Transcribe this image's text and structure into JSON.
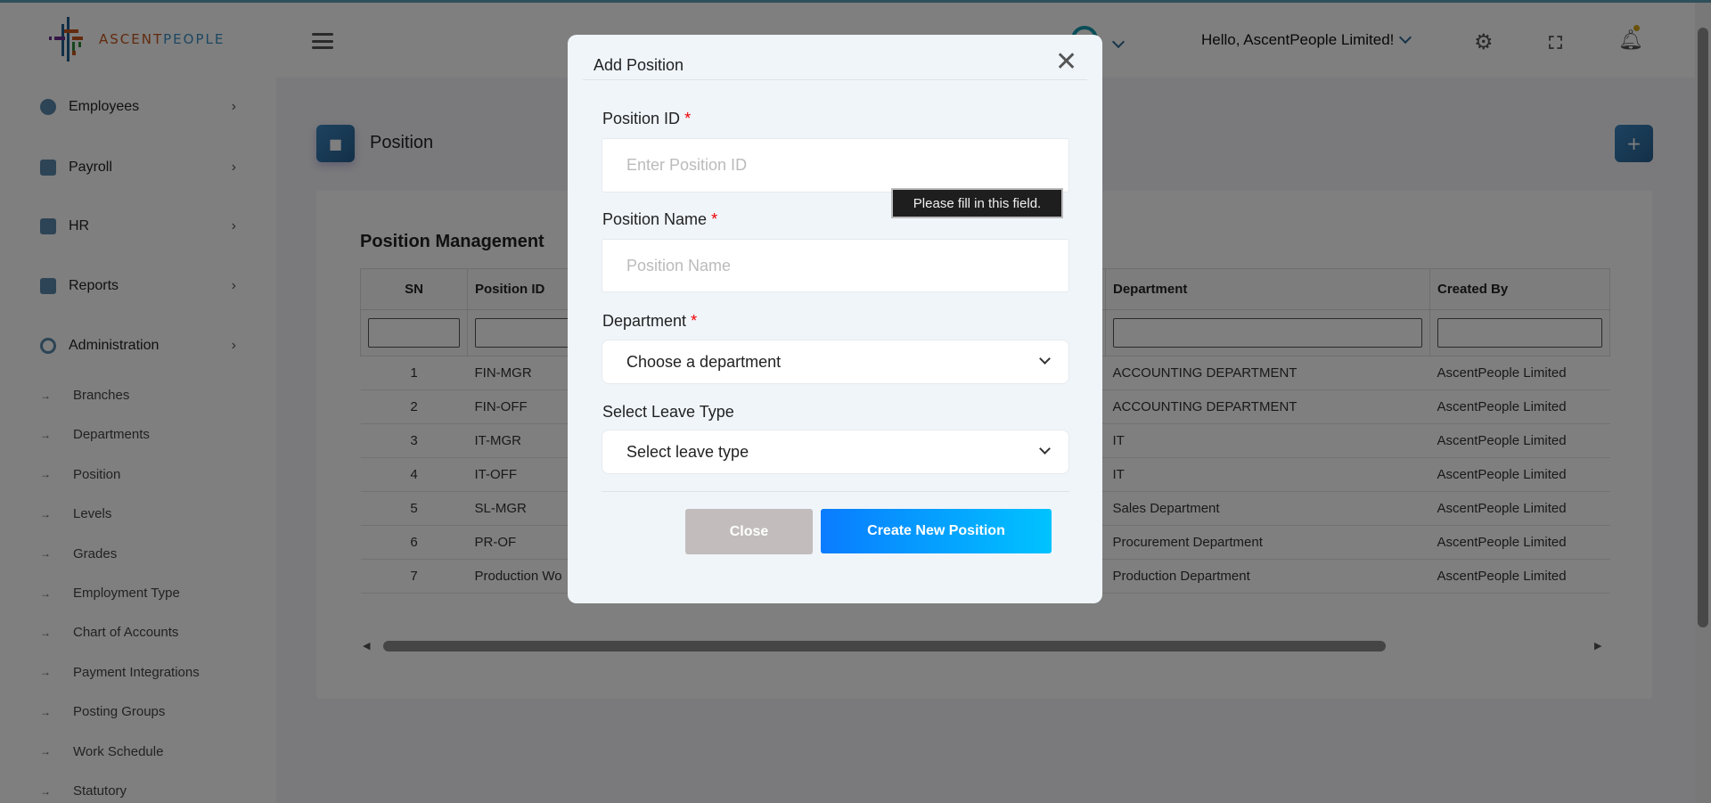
{
  "brand": {
    "logo_part1": "ASCENT",
    "logo_part2": "PEOPLE"
  },
  "header": {
    "greeting": "Hello, AscentPeople Limited!"
  },
  "sidebar": {
    "items": [
      {
        "label": "Employees"
      },
      {
        "label": "Payroll"
      },
      {
        "label": "HR"
      },
      {
        "label": "Reports"
      },
      {
        "label": "Administration"
      }
    ],
    "sub_items": [
      {
        "label": "Branches"
      },
      {
        "label": "Departments"
      },
      {
        "label": "Position"
      },
      {
        "label": "Levels"
      },
      {
        "label": "Grades"
      },
      {
        "label": "Employment Type"
      },
      {
        "label": "Chart of Accounts"
      },
      {
        "label": "Payment Integrations"
      },
      {
        "label": "Posting Groups"
      },
      {
        "label": "Work Schedule"
      },
      {
        "label": "Statutory"
      }
    ]
  },
  "page": {
    "title": "Position",
    "add_label": "+"
  },
  "table": {
    "title": "Position Management",
    "columns": [
      "SN",
      "Position ID",
      "",
      "Department",
      "Created By"
    ],
    "rows": [
      [
        "1",
        "FIN-MGR",
        "",
        "ACCOUNTING DEPARTMENT",
        "AscentPeople Limited"
      ],
      [
        "2",
        "FIN-OFF",
        "",
        "ACCOUNTING DEPARTMENT",
        "AscentPeople Limited"
      ],
      [
        "3",
        "IT-MGR",
        "",
        "IT",
        "AscentPeople Limited"
      ],
      [
        "4",
        "IT-OFF",
        "",
        "IT",
        "AscentPeople Limited"
      ],
      [
        "5",
        "SL-MGR",
        "",
        "Sales Department",
        "AscentPeople Limited"
      ],
      [
        "6",
        "PR-OF",
        "",
        "Procurement Department",
        "AscentPeople Limited"
      ],
      [
        "7",
        "Production Wo",
        "",
        "Production Department",
        "AscentPeople Limited"
      ]
    ]
  },
  "modal": {
    "title": "Add Position",
    "required_mark": "*",
    "position_id": {
      "label": "Position ID",
      "placeholder": "Enter Position ID",
      "value": ""
    },
    "position_name": {
      "label": "Position Name",
      "placeholder": "Position Name",
      "value": ""
    },
    "department": {
      "label": "Department",
      "selected": "Choose a department"
    },
    "leave_type": {
      "label": "Select Leave Type",
      "selected": "Select leave type"
    },
    "tooltip": "Please fill in this field.",
    "close_label": "Close",
    "create_label": "Create New Position"
  },
  "colors": {
    "accent": "#2f6a95",
    "primary_button": "#0a7cff",
    "close_button": "#c2bcbc",
    "required": "#ee0000"
  }
}
